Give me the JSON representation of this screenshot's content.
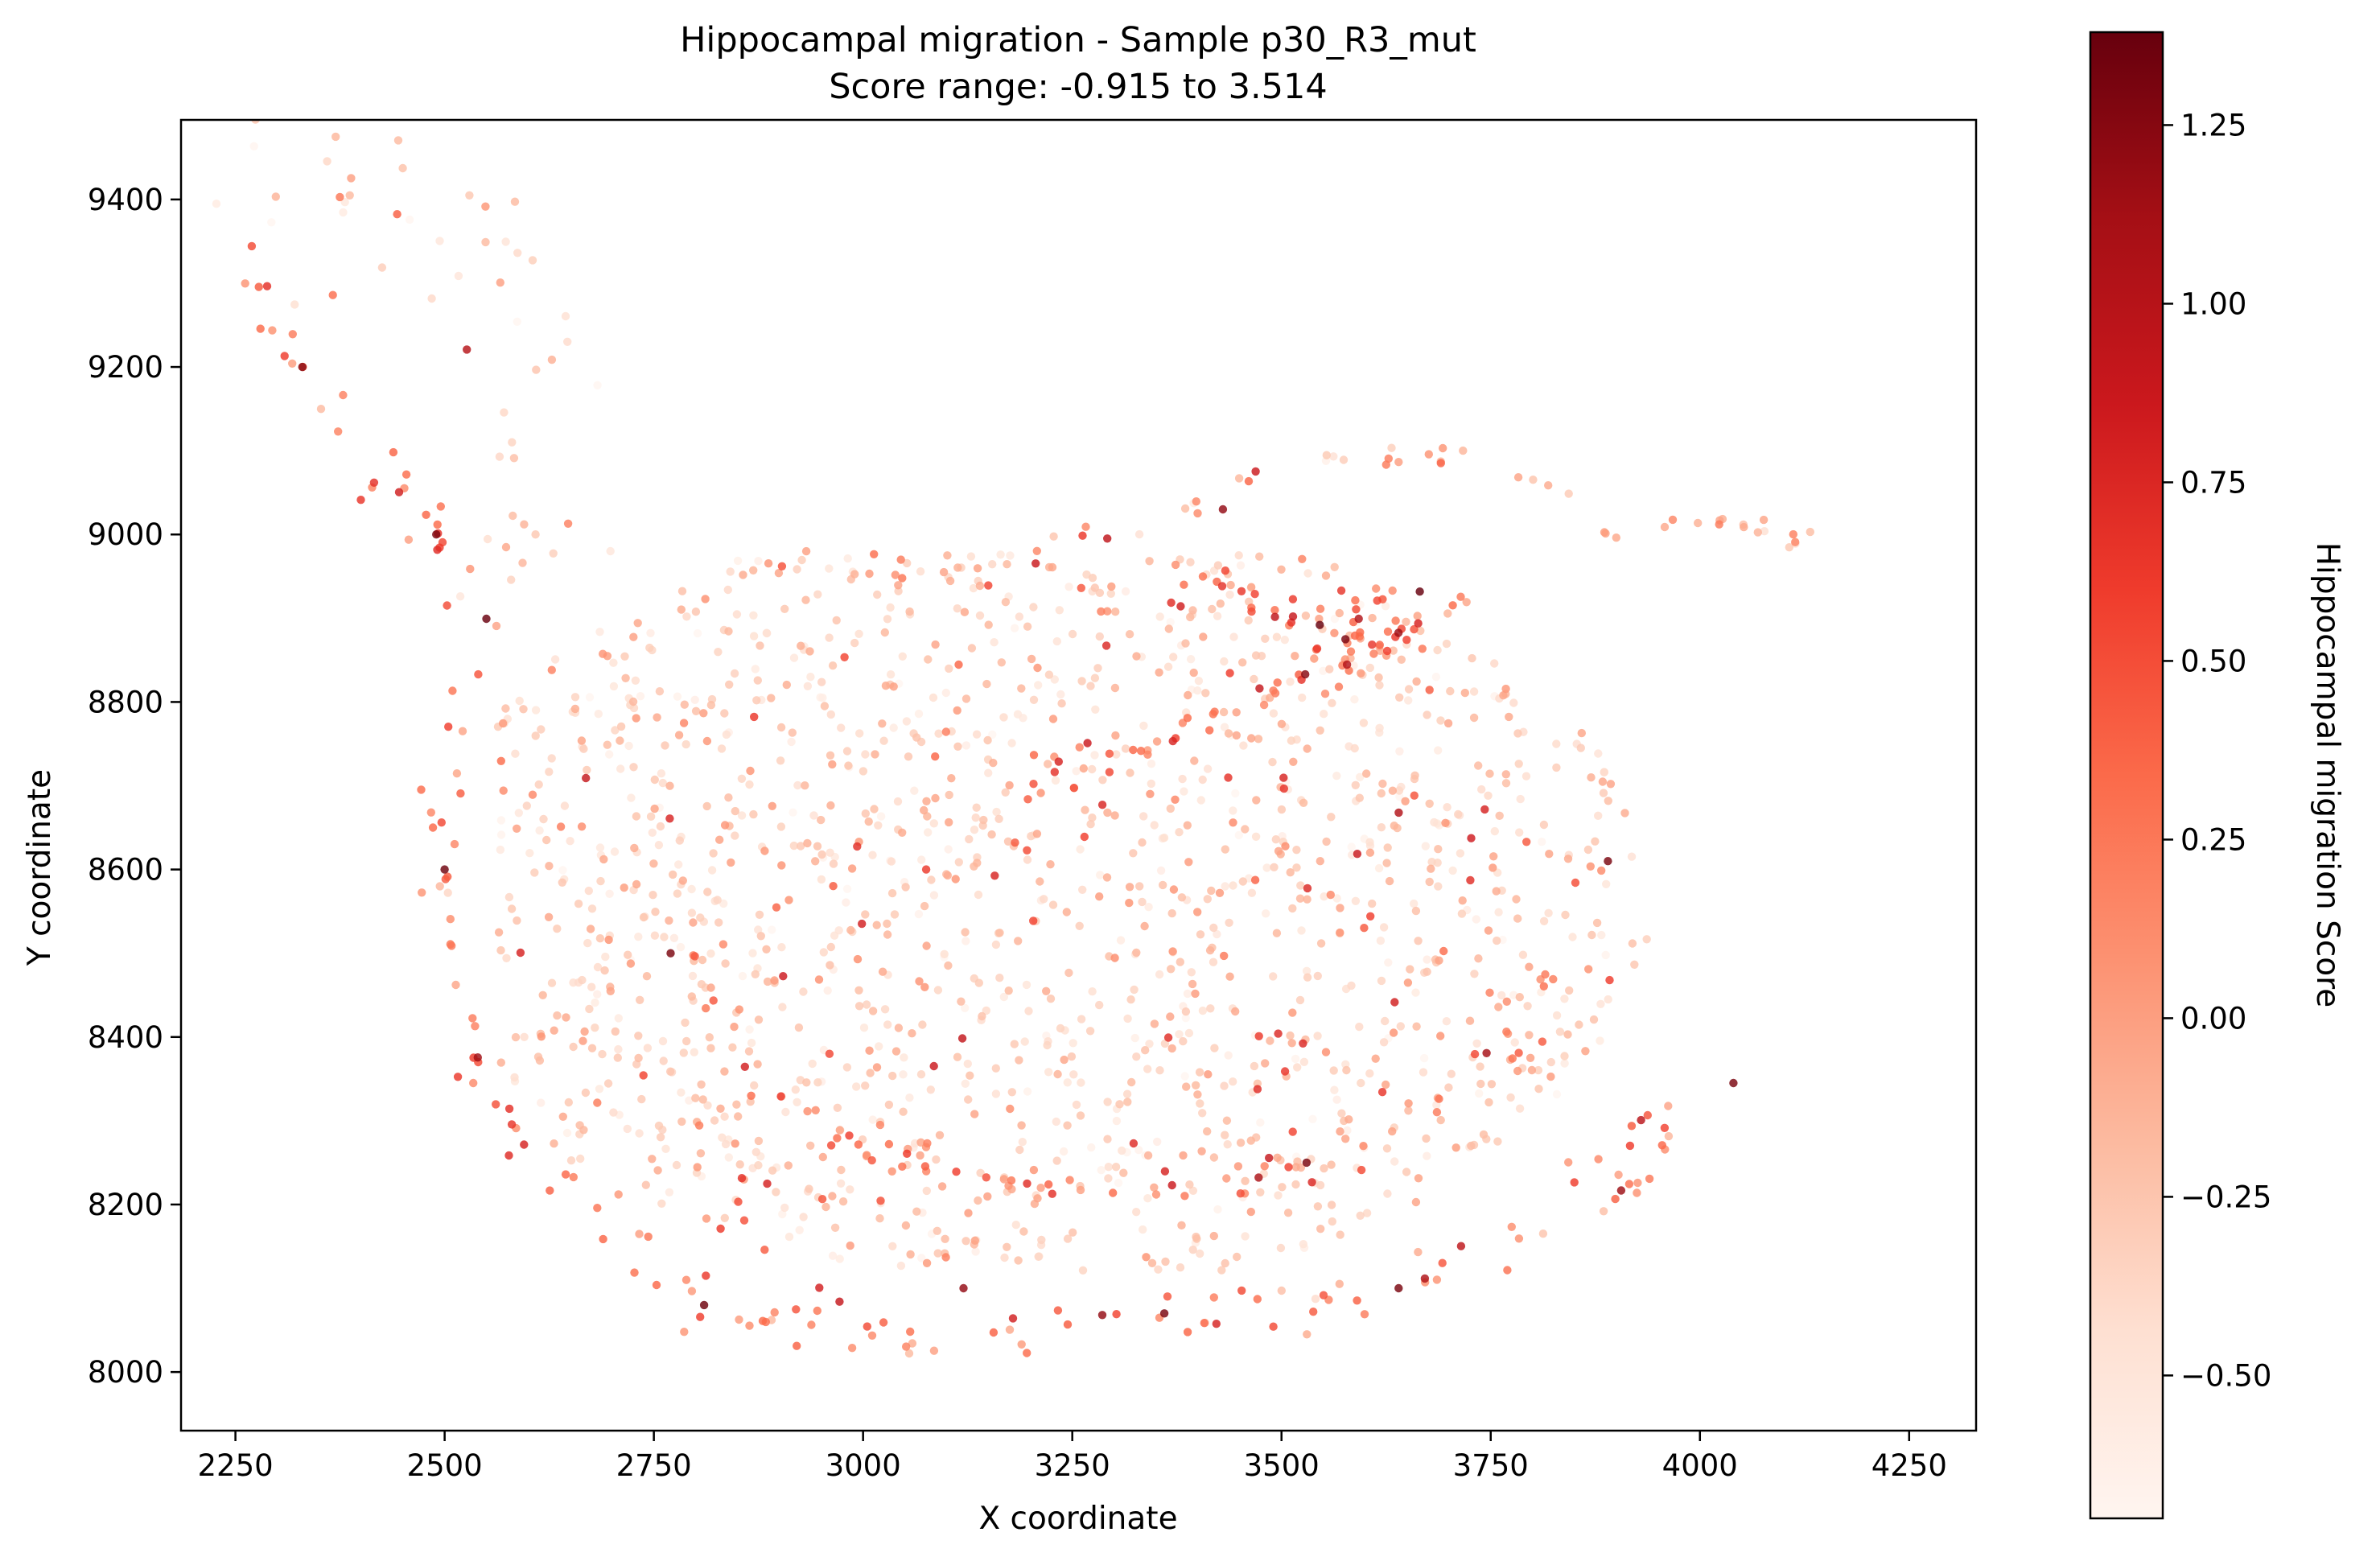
{
  "chart_data": {
    "type": "scatter",
    "title": "Hippocampal migration - Sample p30_R3_mut",
    "subtitle": "Score range: -0.915 to 3.514",
    "xlabel": "X coordinate",
    "ylabel": "Y coordinate",
    "xlim": [
      2185,
      4330
    ],
    "ylim": [
      7930,
      9495
    ],
    "xticks": [
      2250,
      2500,
      2750,
      3000,
      3250,
      3500,
      3750,
      4000,
      4250
    ],
    "yticks": [
      8000,
      8200,
      8400,
      8600,
      8800,
      9000,
      9200,
      9400
    ],
    "grid": false,
    "legend": "none",
    "colorbar": {
      "label": "Hippocampal migration Score",
      "range": [
        -0.7,
        1.38
      ],
      "ticks": [
        -0.5,
        -0.25,
        0.0,
        0.25,
        0.5,
        0.75,
        1.0,
        1.25
      ],
      "tick_labels": [
        "−0.50",
        "−0.25",
        "0.00",
        "0.25",
        "0.50",
        "0.75",
        "1.00",
        "1.25"
      ],
      "colormap": "Reds",
      "colors": [
        "#fff5f0",
        "#fee0d2",
        "#fcbba1",
        "#fc9272",
        "#fb6a4a",
        "#ef3b2c",
        "#cb181d",
        "#a50f15",
        "#67000d"
      ]
    },
    "point_count_approx": 3500,
    "regions": [
      {
        "name": "upper-left arm",
        "path": [
          [
            2270,
            9340
          ],
          [
            2320,
            9390
          ],
          [
            2380,
            9395
          ],
          [
            2430,
            9400
          ],
          [
            2480,
            9390
          ],
          [
            2520,
            9350
          ],
          [
            2560,
            9300
          ],
          [
            2590,
            9250
          ],
          [
            2610,
            9180
          ],
          [
            2620,
            9100
          ],
          [
            2610,
            9020
          ],
          [
            2590,
            8960
          ],
          [
            2570,
            8900
          ]
        ],
        "width": 90,
        "density": 55,
        "base": -0.25
      },
      {
        "name": "upper-left arm outer edge",
        "path": [
          [
            2270,
            9340
          ],
          [
            2300,
            9250
          ],
          [
            2340,
            9170
          ],
          [
            2390,
            9100
          ],
          [
            2440,
            9040
          ],
          [
            2490,
            8990
          ],
          [
            2530,
            8940
          ],
          [
            2560,
            8890
          ]
        ],
        "width": 30,
        "density": 30,
        "base": 0.4
      },
      {
        "name": "left lobe edge",
        "path": [
          [
            2560,
            8890
          ],
          [
            2530,
            8800
          ],
          [
            2510,
            8700
          ],
          [
            2500,
            8600
          ],
          [
            2500,
            8500
          ],
          [
            2510,
            8420
          ],
          [
            2540,
            8340
          ],
          [
            2580,
            8280
          ],
          [
            2630,
            8230
          ],
          [
            2690,
            8190
          ],
          [
            2740,
            8140
          ],
          [
            2790,
            8090
          ]
        ],
        "width": 30,
        "density": 45,
        "base": 0.2
      },
      {
        "name": "bottom arc",
        "path": [
          [
            2790,
            8080
          ],
          [
            2900,
            8060
          ],
          [
            3000,
            8050
          ],
          [
            3100,
            8040
          ],
          [
            3200,
            8040
          ],
          [
            3300,
            8055
          ],
          [
            3400,
            8070
          ],
          [
            3500,
            8080
          ],
          [
            3600,
            8100
          ],
          [
            3700,
            8130
          ],
          [
            3780,
            8170
          ],
          [
            3840,
            8220
          ],
          [
            3900,
            8270
          ],
          [
            3950,
            8310
          ]
        ],
        "width": 35,
        "density": 70,
        "base": 0.2
      },
      {
        "name": "inner lower band",
        "path": [
          [
            2800,
            8500
          ],
          [
            2830,
            8400
          ],
          [
            2880,
            8330
          ],
          [
            2960,
            8290
          ],
          [
            3060,
            8260
          ],
          [
            3160,
            8230
          ],
          [
            3260,
            8220
          ],
          [
            3360,
            8220
          ],
          [
            3450,
            8230
          ],
          [
            3550,
            8260
          ],
          [
            3650,
            8310
          ],
          [
            3720,
            8350
          ],
          [
            3780,
            8400
          ],
          [
            3820,
            8470
          ],
          [
            3840,
            8520
          ]
        ],
        "width": 25,
        "density": 75,
        "base": 0.15
      },
      {
        "name": "upper thick band",
        "path": [
          [
            3200,
            8700
          ],
          [
            3300,
            8740
          ],
          [
            3400,
            8770
          ],
          [
            3480,
            8810
          ],
          [
            3550,
            8840
          ],
          [
            3620,
            8880
          ],
          [
            3680,
            8910
          ],
          [
            3720,
            8920
          ]
        ],
        "width": 25,
        "density": 55,
        "base": 0.35
      },
      {
        "name": "top cluster",
        "path": [
          [
            3380,
            8930
          ],
          [
            3450,
            8920
          ],
          [
            3530,
            8910
          ],
          [
            3600,
            8900
          ],
          [
            3660,
            8890
          ]
        ],
        "width": 30,
        "density": 40,
        "base": 0.45
      },
      {
        "name": "top edge",
        "path": [
          [
            2800,
            8960
          ],
          [
            2900,
            8960
          ],
          [
            3000,
            8960
          ],
          [
            3100,
            8960
          ],
          [
            3200,
            8980
          ],
          [
            3300,
            9000
          ],
          [
            3380,
            9040
          ],
          [
            3450,
            9060
          ],
          [
            3550,
            9080
          ],
          [
            3650,
            9090
          ],
          [
            3720,
            9090
          ],
          [
            3800,
            9070
          ],
          [
            3850,
            9040
          ],
          [
            3900,
            9000
          ]
        ],
        "width": 20,
        "density": 50,
        "base": -0.15
      },
      {
        "name": "right tail",
        "path": [
          [
            3950,
            9010
          ],
          [
            4030,
            9010
          ],
          [
            4100,
            9000
          ],
          [
            4160,
            8990
          ]
        ],
        "width": 12,
        "density": 16,
        "base": -0.05
      },
      {
        "name": "right edge lower",
        "path": [
          [
            3960,
            8330
          ],
          [
            3950,
            8260
          ],
          [
            3930,
            8220
          ],
          [
            3900,
            8200
          ]
        ],
        "width": 15,
        "density": 12,
        "base": 0.2
      }
    ],
    "fill": {
      "x_range": [
        2560,
        3950
      ],
      "y_range": [
        8120,
        8980
      ],
      "density": 1500,
      "base": -0.3
    },
    "notable_points": [
      {
        "x": 2330,
        "y": 9200,
        "score": 1.25
      },
      {
        "x": 2490,
        "y": 9000,
        "score": 1.3
      },
      {
        "x": 2770,
        "y": 8500,
        "score": 1.3
      },
      {
        "x": 2500,
        "y": 8600,
        "score": 1.35
      },
      {
        "x": 3120,
        "y": 8100,
        "score": 1.2
      },
      {
        "x": 3360,
        "y": 8070,
        "score": 1.3
      },
      {
        "x": 3530,
        "y": 8250,
        "score": 1.3
      },
      {
        "x": 3890,
        "y": 8610,
        "score": 1.3
      },
      {
        "x": 4040,
        "y": 8345,
        "score": 1.3
      },
      {
        "x": 2810,
        "y": 8080,
        "score": 1.35
      },
      {
        "x": 3640,
        "y": 8100,
        "score": 1.3
      },
      {
        "x": 3430,
        "y": 9030,
        "score": 1.2
      }
    ]
  }
}
